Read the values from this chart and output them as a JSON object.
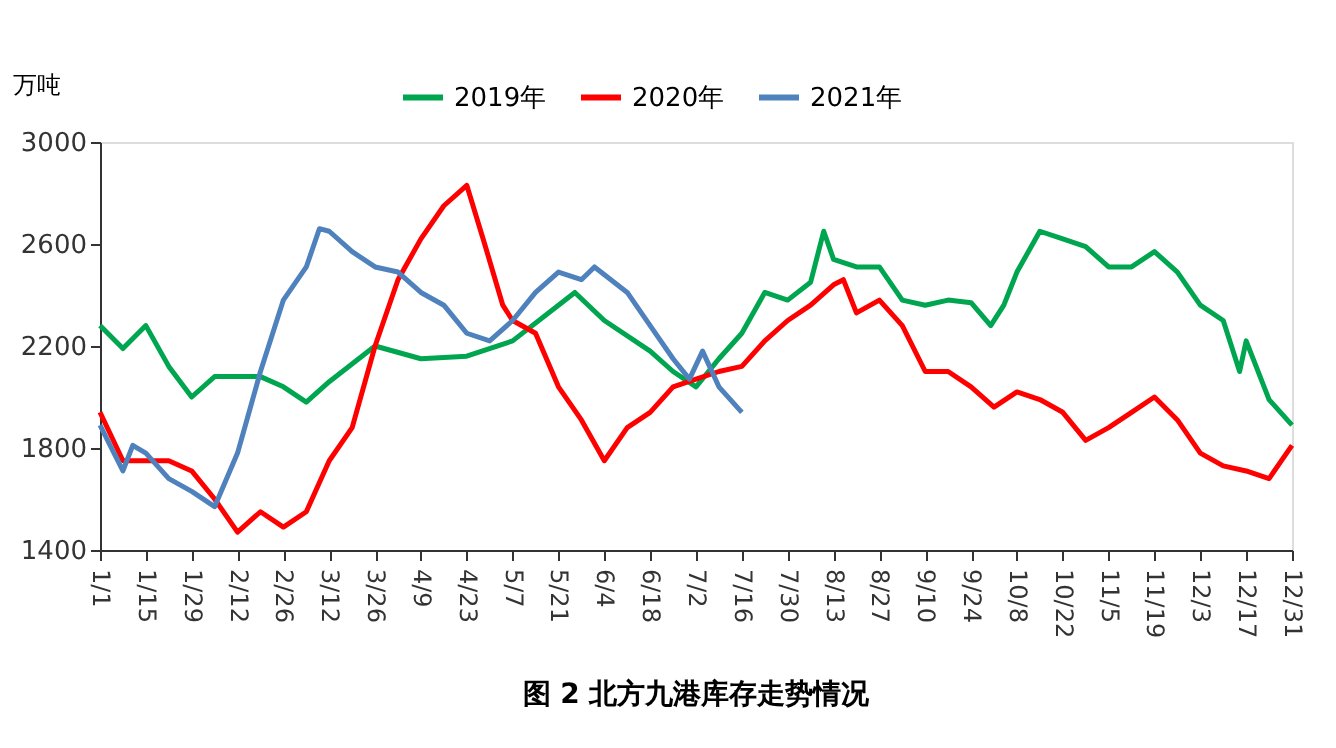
{
  "chart_data": {
    "type": "line",
    "title": "图 2  北方九港库存走势情况",
    "ylabel": "万吨",
    "xlim": [
      "--01-01",
      "--12-31"
    ],
    "xticks": [
      {
        "value": "--01-01",
        "label": "1/1"
      },
      {
        "value": "--01-15",
        "label": "1/15"
      },
      {
        "value": "--01-29",
        "label": "1/29"
      },
      {
        "value": "--02-12",
        "label": "2/12"
      },
      {
        "value": "--02-26",
        "label": "2/26"
      },
      {
        "value": "--03-12",
        "label": "3/12"
      },
      {
        "value": "--03-26",
        "label": "3/26"
      },
      {
        "value": "--04-09",
        "label": "4/9"
      },
      {
        "value": "--04-23",
        "label": "4/23"
      },
      {
        "value": "--05-07",
        "label": "5/7"
      },
      {
        "value": "--05-21",
        "label": "5/21"
      },
      {
        "value": "--06-04",
        "label": "6/4"
      },
      {
        "value": "--06-18",
        "label": "6/18"
      },
      {
        "value": "--07-02",
        "label": "7/2"
      },
      {
        "value": "--07-16",
        "label": "7/16"
      },
      {
        "value": "--07-30",
        "label": "7/30"
      },
      {
        "value": "--08-13",
        "label": "8/13"
      },
      {
        "value": "--08-27",
        "label": "8/27"
      },
      {
        "value": "--09-10",
        "label": "9/10"
      },
      {
        "value": "--09-24",
        "label": "9/24"
      },
      {
        "value": "--10-08",
        "label": "10/8"
      },
      {
        "value": "--10-22",
        "label": "10/22"
      },
      {
        "value": "--11-05",
        "label": "11/5"
      },
      {
        "value": "--11-19",
        "label": "11/19"
      },
      {
        "value": "--12-03",
        "label": "12/3"
      },
      {
        "value": "--12-17",
        "label": "12/17"
      },
      {
        "value": "--12-31",
        "label": "12/31"
      }
    ],
    "ylim": [
      1400,
      3000
    ],
    "yticks": [
      1400,
      1800,
      2200,
      2600,
      3000
    ],
    "grid": false,
    "legend": "top",
    "line_style": "solid",
    "marker": "none",
    "series": [
      {
        "name": "2019年",
        "color": "#00a550",
        "x": [
          "--01-01",
          "--01-08",
          "--01-15",
          "--01-22",
          "--01-29",
          "--02-05",
          "--02-12",
          "--02-19",
          "--02-26",
          "--03-05",
          "--03-12",
          "--03-26",
          "--04-09",
          "--04-23",
          "--05-07",
          "--05-21",
          "--05-26",
          "--06-04",
          "--06-18",
          "--06-25",
          "--07-02",
          "--07-09",
          "--07-16",
          "--07-23",
          "--07-30",
          "--08-06",
          "--08-10",
          "--08-13",
          "--08-20",
          "--08-27",
          "--09-03",
          "--09-10",
          "--09-17",
          "--09-24",
          "--09-30",
          "--10-04",
          "--10-08",
          "--10-15",
          "--10-22",
          "--10-29",
          "--11-05",
          "--11-12",
          "--11-19",
          "--11-26",
          "--12-03",
          "--12-10",
          "--12-15",
          "--12-17",
          "--12-24",
          "--12-31"
        ],
        "values": [
          2280,
          2190,
          2280,
          2120,
          2000,
          2080,
          2080,
          2080,
          2040,
          1980,
          2060,
          2200,
          2150,
          2160,
          2220,
          2360,
          2410,
          2300,
          2180,
          2100,
          2040,
          2150,
          2250,
          2410,
          2380,
          2450,
          2650,
          2540,
          2510,
          2510,
          2380,
          2360,
          2380,
          2370,
          2280,
          2360,
          2490,
          2650,
          2620,
          2590,
          2510,
          2510,
          2570,
          2490,
          2360,
          2300,
          2100,
          2220,
          1990,
          1890
        ]
      },
      {
        "name": "2020年",
        "color": "#ff0000",
        "x": [
          "--01-01",
          "--01-08",
          "--01-15",
          "--01-22",
          "--01-29",
          "--02-05",
          "--02-12",
          "--02-19",
          "--02-26",
          "--03-05",
          "--03-12",
          "--03-19",
          "--03-26",
          "--04-02",
          "--04-09",
          "--04-16",
          "--04-23",
          "--04-28",
          "--05-04",
          "--05-07",
          "--05-14",
          "--05-21",
          "--05-28",
          "--06-04",
          "--06-11",
          "--06-18",
          "--06-25",
          "--07-02",
          "--07-09",
          "--07-16",
          "--07-23",
          "--07-30",
          "--08-06",
          "--08-13",
          "--08-16",
          "--08-20",
          "--08-27",
          "--09-03",
          "--09-10",
          "--09-17",
          "--09-24",
          "--10-01",
          "--10-08",
          "--10-15",
          "--10-22",
          "--10-29",
          "--11-05",
          "--11-12",
          "--11-19",
          "--11-26",
          "--12-03",
          "--12-10",
          "--12-17",
          "--12-24",
          "--12-31"
        ],
        "values": [
          1940,
          1750,
          1750,
          1750,
          1710,
          1600,
          1470,
          1550,
          1490,
          1550,
          1750,
          1880,
          2200,
          2460,
          2620,
          2750,
          2830,
          2620,
          2360,
          2300,
          2250,
          2040,
          1910,
          1750,
          1880,
          1940,
          2040,
          2070,
          2100,
          2120,
          2220,
          2300,
          2360,
          2440,
          2460,
          2330,
          2380,
          2280,
          2100,
          2100,
          2040,
          1960,
          2020,
          1990,
          1940,
          1830,
          1880,
          1940,
          2000,
          1910,
          1780,
          1730,
          1710,
          1680,
          1810
        ]
      },
      {
        "name": "2021年",
        "color": "#4f81bd",
        "x": [
          "--01-01",
          "--01-08",
          "--01-11",
          "--01-15",
          "--01-22",
          "--01-29",
          "--02-05",
          "--02-12",
          "--02-19",
          "--02-26",
          "--03-05",
          "--03-09",
          "--03-12",
          "--03-19",
          "--03-26",
          "--04-02",
          "--04-09",
          "--04-16",
          "--04-23",
          "--04-30",
          "--05-07",
          "--05-14",
          "--05-21",
          "--05-28",
          "--06-01",
          "--06-11",
          "--06-18",
          "--06-25",
          "--06-30",
          "--07-04",
          "--07-09",
          "--07-16"
        ],
        "values": [
          1890,
          1710,
          1810,
          1780,
          1680,
          1630,
          1570,
          1780,
          2100,
          2380,
          2510,
          2660,
          2650,
          2570,
          2510,
          2490,
          2410,
          2360,
          2250,
          2220,
          2300,
          2410,
          2490,
          2460,
          2510,
          2410,
          2280,
          2150,
          2070,
          2180,
          2040,
          1940
        ]
      }
    ]
  }
}
